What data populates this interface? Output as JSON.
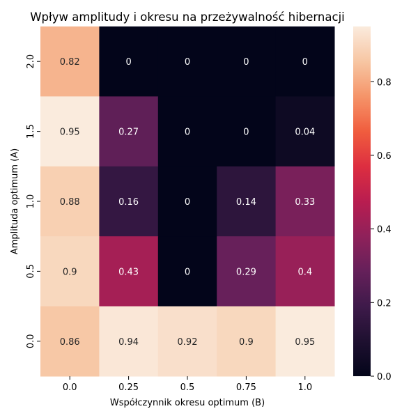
{
  "chart_data": {
    "type": "heatmap",
    "title": "Wpływ amplitudy i okresu na przeżywalność hibernacji",
    "xlabel": "Współczynnik okresu optimum (B)",
    "ylabel": "Amplituda optimum (A)",
    "x_categories": [
      "0.0",
      "0.25",
      "0.5",
      "0.75",
      "1.0"
    ],
    "y_categories": [
      "2.0",
      "1.5",
      "1.0",
      "0.5",
      "0.0"
    ],
    "values": [
      [
        0.82,
        0,
        0,
        0,
        0
      ],
      [
        0.95,
        0.27,
        0,
        0,
        0.04
      ],
      [
        0.88,
        0.16,
        0,
        0.14,
        0.33
      ],
      [
        0.9,
        0.43,
        0,
        0.29,
        0.4
      ],
      [
        0.86,
        0.94,
        0.92,
        0.9,
        0.95
      ]
    ],
    "cell_labels": [
      [
        "0.82",
        "0",
        "0",
        "0",
        "0"
      ],
      [
        "0.95",
        "0.27",
        "0",
        "0",
        "0.04"
      ],
      [
        "0.88",
        "0.16",
        "0",
        "0.14",
        "0.33"
      ],
      [
        "0.9",
        "0.43",
        "0",
        "0.29",
        "0.4"
      ],
      [
        "0.86",
        "0.94",
        "0.92",
        "0.9",
        "0.95"
      ]
    ],
    "colorbar": {
      "range": [
        0,
        0.95
      ],
      "ticks": [
        0.0,
        0.2,
        0.4,
        0.6,
        0.8
      ],
      "tick_labels": [
        "0.0",
        "0.2",
        "0.4",
        "0.6",
        "0.8"
      ],
      "colormap": "rocket"
    },
    "grid": false,
    "legend": "colorbar-right"
  }
}
